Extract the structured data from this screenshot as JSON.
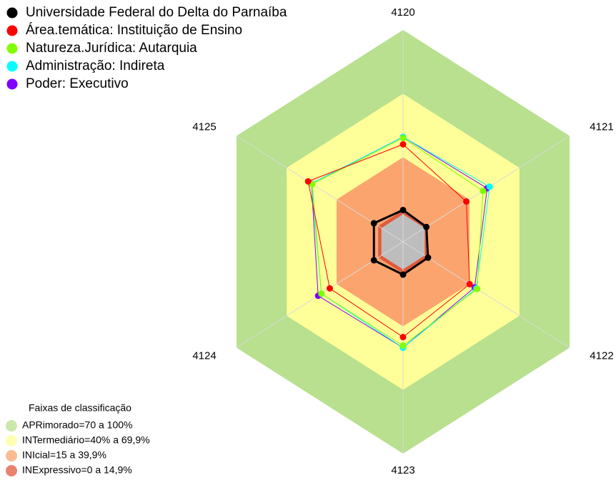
{
  "chart_data": {
    "type": "radar",
    "axes": [
      "4120",
      "4121",
      "4122",
      "4123",
      "4124",
      "4125"
    ],
    "rlim": [
      0,
      100
    ],
    "series": [
      {
        "name": "Poder: Executivo",
        "color": "#7f00ff",
        "values": [
          49.5,
          50.5,
          43,
          50,
          51,
          55
        ]
      },
      {
        "name": "Administração: Indireta",
        "color": "#00ffff",
        "values": [
          49.5,
          52,
          44,
          50,
          49,
          55
        ]
      },
      {
        "name": "Natureza.Jurídica: Autarquia",
        "color": "#80ff00",
        "values": [
          49,
          48,
          44.5,
          49,
          49,
          54.5
        ]
      },
      {
        "name": "Área.temática: Instituição de Ensino",
        "color": "#ff0000",
        "values": [
          46,
          38,
          40,
          45,
          44,
          57
        ]
      },
      {
        "name": "Universidade Federal do Delta do Parnaíba",
        "color": "#000000",
        "values": [
          15,
          14,
          15,
          15.5,
          17.5,
          17.5
        ]
      }
    ],
    "bands_title": "Faixas de classificação",
    "bands": [
      {
        "label": "APRimorado=70 a 100%",
        "color": "#b8e08e",
        "range": [
          70,
          100
        ]
      },
      {
        "label": "INTermediário=40% a 69,9%",
        "color": "#ffff99",
        "range": [
          40,
          69.9
        ]
      },
      {
        "label": "INIcial=15 a 39,9%",
        "color": "#fca46e",
        "range": [
          15,
          39.9
        ]
      },
      {
        "label": "INExpressivo=0 a 14,9%",
        "color": "#e05a3c",
        "range": [
          0,
          14.9
        ]
      }
    ]
  }
}
